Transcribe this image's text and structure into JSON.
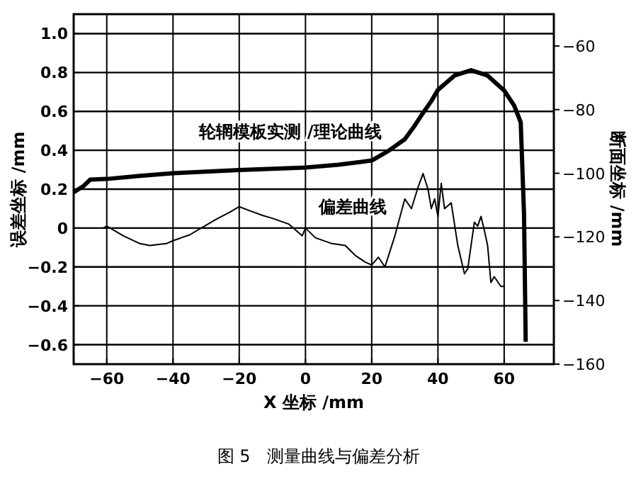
{
  "chart_data": {
    "type": "line",
    "xlabel": "X 坐标 /mm",
    "ylabel": "误差坐标 /mm",
    "y2label": "断面坐标 /mm",
    "annotations": [
      "图 5　测量曲线与偏差分析"
    ],
    "xlim": [
      -70,
      75
    ],
    "xticks": [
      {
        "value": -60,
        "label": "−60"
      },
      {
        "value": -40,
        "label": "−40"
      },
      {
        "value": -20,
        "label": "−20"
      },
      0,
      20,
      40,
      60
    ],
    "ylim": [
      -0.7,
      1.1
    ],
    "yticks": [
      {
        "value": -0.6,
        "label": "−0.6"
      },
      {
        "value": -0.4,
        "label": "−0.4"
      },
      {
        "value": -0.2,
        "label": "−0.2"
      },
      0,
      {
        "value": 0.2,
        "label": "0.2"
      },
      {
        "value": 0.4,
        "label": "0.4"
      },
      {
        "value": 0.6,
        "label": "0.6"
      },
      {
        "value": 0.8,
        "label": "0.8"
      },
      {
        "value": 1,
        "label": "1.0"
      }
    ],
    "y2lim": [
      -160,
      -50
    ],
    "y2ticks": [
      {
        "value": -160,
        "label": "−160"
      },
      {
        "value": -140,
        "label": "−140"
      },
      {
        "value": -120,
        "label": "−120"
      },
      {
        "value": -100,
        "label": "−100"
      },
      {
        "value": -80,
        "label": "−80"
      },
      {
        "value": -60,
        "label": "−60"
      }
    ],
    "grid": true,
    "series": [
      {
        "name": "轮辋模板实测 /理论曲线",
        "color": "#000000",
        "axis": "y2",
        "x": [
          -70,
          -67,
          -65,
          -60,
          -50,
          -40,
          -30,
          -20,
          -10,
          0,
          10,
          20,
          25,
          30,
          33,
          35,
          38,
          40,
          45,
          50,
          55,
          60,
          63,
          65,
          66,
          66.5
        ],
        "values": [
          -106,
          -104,
          -102,
          -101.8,
          -100.8,
          -100,
          -99.5,
          -99,
          -98.6,
          -98.2,
          -97.3,
          -96,
          -93,
          -89.3,
          -85,
          -81.8,
          -77.3,
          -73.8,
          -69.3,
          -67.6,
          -69.3,
          -74,
          -78.7,
          -84,
          -113,
          -153
        ]
      },
      {
        "name": "偏差曲线",
        "color": "#000000",
        "x": [
          -61,
          -60,
          -55,
          -50,
          -47,
          -42,
          -40,
          -35,
          -30,
          -27,
          -23,
          -20,
          -17,
          -13,
          -10,
          -5,
          -1,
          0,
          3,
          8,
          12,
          15,
          18,
          20,
          22,
          24,
          27,
          30,
          32,
          34,
          35.5,
          37,
          38,
          39,
          40,
          41,
          42,
          44,
          46,
          48,
          49,
          51,
          52,
          53,
          54,
          55,
          56,
          57,
          59,
          60
        ],
        "values": [
          0,
          0.01,
          -0.04,
          -0.08,
          -0.09,
          -0.08,
          -0.065,
          -0.035,
          0.015,
          0.045,
          0.08,
          0.11,
          0.09,
          0.065,
          0.05,
          0.02,
          -0.04,
          0,
          -0.05,
          -0.08,
          -0.09,
          -0.14,
          -0.175,
          -0.19,
          -0.15,
          -0.2,
          -0.04,
          0.15,
          0.1,
          0.21,
          0.28,
          0.2,
          0.1,
          0.15,
          0.06,
          0.23,
          0.1,
          0.13,
          -0.09,
          -0.235,
          -0.21,
          0.03,
          0.01,
          0.06,
          -0.01,
          -0.09,
          -0.28,
          -0.25,
          -0.3,
          -0.3
        ]
      }
    ]
  }
}
